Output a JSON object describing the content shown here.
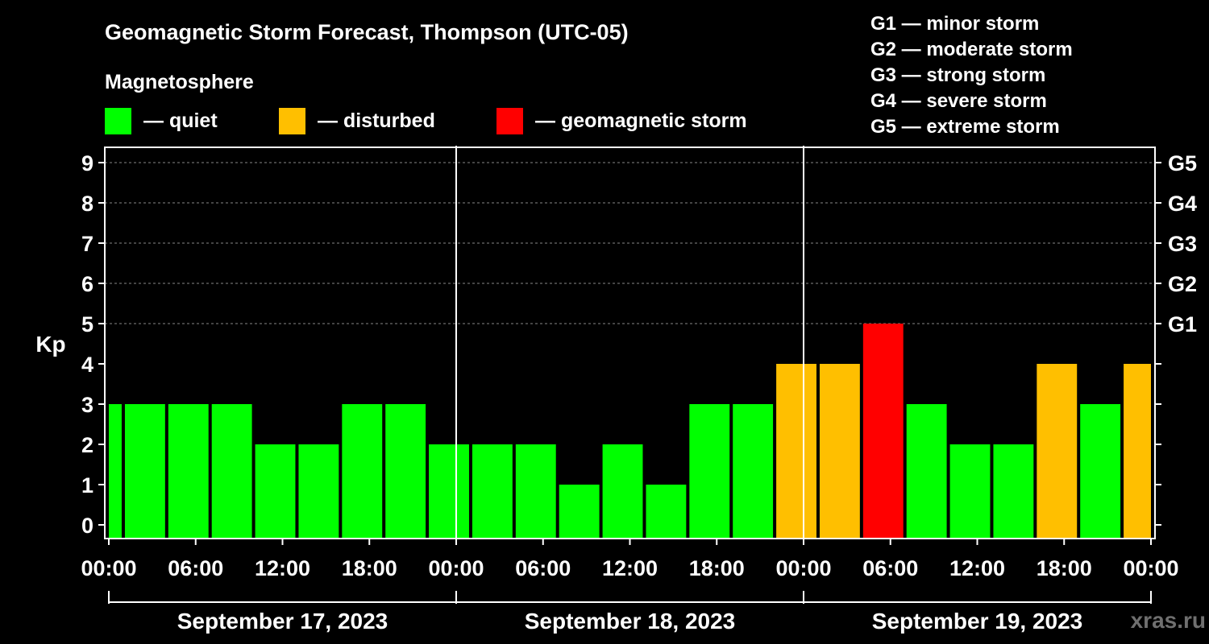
{
  "colors": {
    "background": "#000000",
    "quiet": "#00ff00",
    "disturbed": "#ffbf00",
    "storm": "#ff0000",
    "text": "#ffffff",
    "grid": "#888888"
  },
  "watermark": "xras.ru",
  "gscale": [
    "G1 — minor storm",
    "G2 — moderate storm",
    "G3 — strong storm",
    "G4 — severe storm",
    "G5 — extreme storm"
  ],
  "chart_data": {
    "type": "bar",
    "title": "Geomagnetic Storm Forecast, Thompson (UTC-05)",
    "legend_title": "Magnetosphere",
    "legend": [
      {
        "key": "quiet",
        "label": "— quiet"
      },
      {
        "key": "disturbed",
        "label": "— disturbed"
      },
      {
        "key": "storm",
        "label": "— geomagnetic storm"
      }
    ],
    "ylabel": "Kp",
    "ylim": [
      0,
      9
    ],
    "yticks": [
      0,
      1,
      2,
      3,
      4,
      5,
      6,
      7,
      8,
      9
    ],
    "right_axis": [
      {
        "kp": 5,
        "label": "G1"
      },
      {
        "kp": 6,
        "label": "G2"
      },
      {
        "kp": 7,
        "label": "G3"
      },
      {
        "kp": 8,
        "label": "G4"
      },
      {
        "kp": 9,
        "label": "G5"
      }
    ],
    "grid": "horizontal dashed at 5–9",
    "x_range_hours": [
      0,
      72
    ],
    "xticks": [
      {
        "hour": 0,
        "label": "00:00"
      },
      {
        "hour": 6,
        "label": "06:00"
      },
      {
        "hour": 12,
        "label": "12:00"
      },
      {
        "hour": 18,
        "label": "18:00"
      },
      {
        "hour": 24,
        "label": "00:00"
      },
      {
        "hour": 30,
        "label": "06:00"
      },
      {
        "hour": 36,
        "label": "12:00"
      },
      {
        "hour": 42,
        "label": "18:00"
      },
      {
        "hour": 48,
        "label": "00:00"
      },
      {
        "hour": 54,
        "label": "06:00"
      },
      {
        "hour": 60,
        "label": "12:00"
      },
      {
        "hour": 66,
        "label": "18:00"
      },
      {
        "hour": 72,
        "label": "00:00"
      }
    ],
    "days": [
      {
        "label": "September 17, 2023",
        "start": 0,
        "end": 24
      },
      {
        "label": "September 18, 2023",
        "start": 24,
        "end": 48
      },
      {
        "label": "September 19, 2023",
        "start": 48,
        "end": 72
      }
    ],
    "bars": [
      {
        "start": 0,
        "end": 1,
        "kp": 3,
        "level": "quiet"
      },
      {
        "start": 1,
        "end": 4,
        "kp": 3,
        "level": "quiet"
      },
      {
        "start": 4,
        "end": 7,
        "kp": 3,
        "level": "quiet"
      },
      {
        "start": 7,
        "end": 10,
        "kp": 3,
        "level": "quiet"
      },
      {
        "start": 10,
        "end": 13,
        "kp": 2,
        "level": "quiet"
      },
      {
        "start": 13,
        "end": 16,
        "kp": 2,
        "level": "quiet"
      },
      {
        "start": 16,
        "end": 19,
        "kp": 3,
        "level": "quiet"
      },
      {
        "start": 19,
        "end": 22,
        "kp": 3,
        "level": "quiet"
      },
      {
        "start": 22,
        "end": 25,
        "kp": 2,
        "level": "quiet"
      },
      {
        "start": 25,
        "end": 28,
        "kp": 2,
        "level": "quiet"
      },
      {
        "start": 28,
        "end": 31,
        "kp": 2,
        "level": "quiet"
      },
      {
        "start": 31,
        "end": 34,
        "kp": 1,
        "level": "quiet"
      },
      {
        "start": 34,
        "end": 37,
        "kp": 2,
        "level": "quiet"
      },
      {
        "start": 37,
        "end": 40,
        "kp": 1,
        "level": "quiet"
      },
      {
        "start": 40,
        "end": 43,
        "kp": 3,
        "level": "quiet"
      },
      {
        "start": 43,
        "end": 46,
        "kp": 3,
        "level": "quiet"
      },
      {
        "start": 46,
        "end": 49,
        "kp": 4,
        "level": "disturbed"
      },
      {
        "start": 49,
        "end": 52,
        "kp": 4,
        "level": "disturbed"
      },
      {
        "start": 52,
        "end": 55,
        "kp": 5,
        "level": "storm"
      },
      {
        "start": 55,
        "end": 58,
        "kp": 3,
        "level": "quiet"
      },
      {
        "start": 58,
        "end": 61,
        "kp": 2,
        "level": "quiet"
      },
      {
        "start": 61,
        "end": 64,
        "kp": 2,
        "level": "quiet"
      },
      {
        "start": 64,
        "end": 67,
        "kp": 4,
        "level": "disturbed"
      },
      {
        "start": 67,
        "end": 70,
        "kp": 3,
        "level": "quiet"
      },
      {
        "start": 70,
        "end": 72,
        "kp": 4,
        "level": "disturbed"
      }
    ]
  }
}
